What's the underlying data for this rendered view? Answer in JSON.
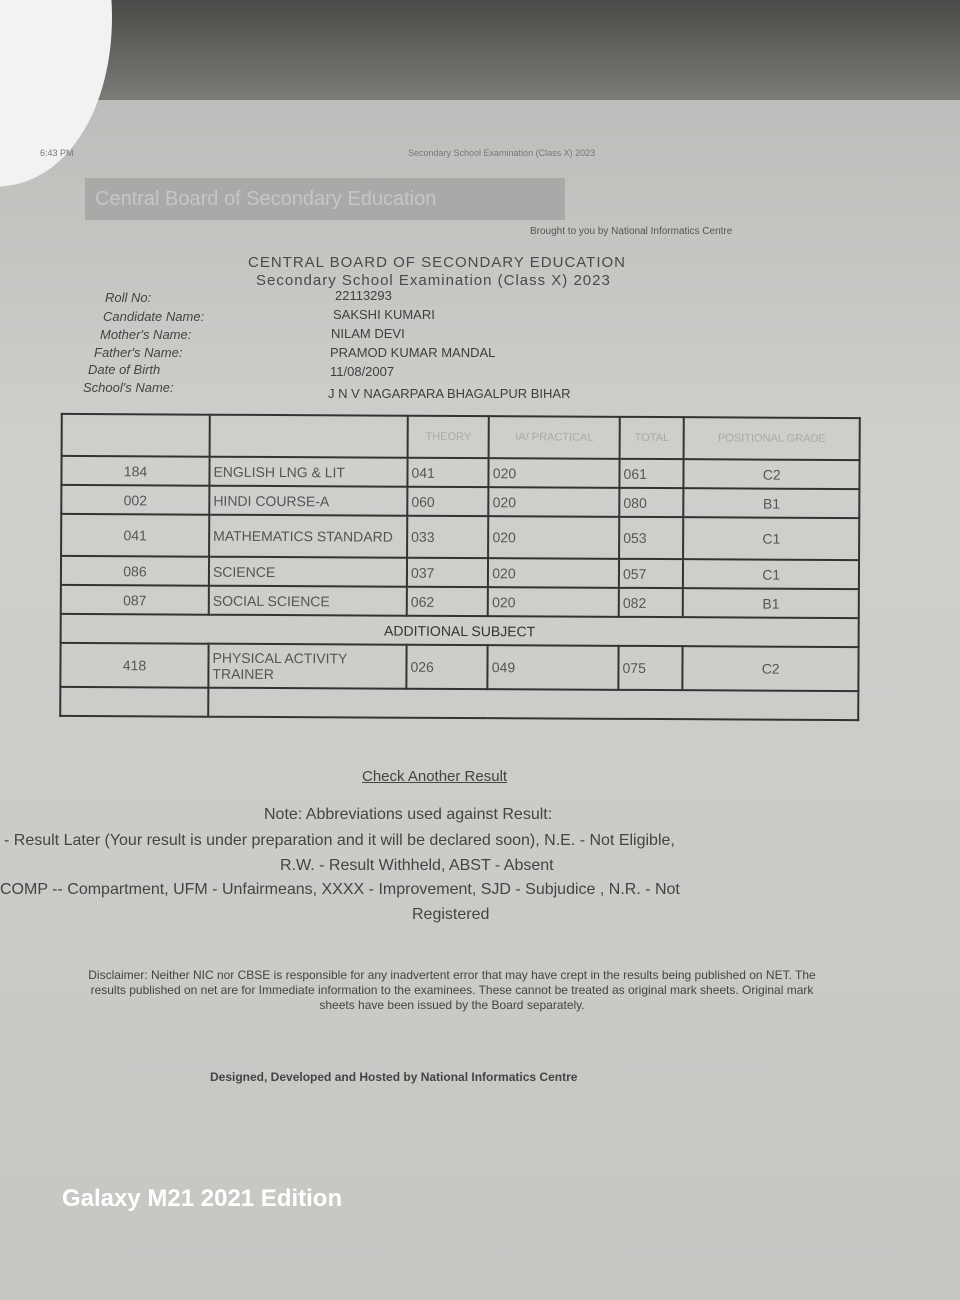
{
  "header": {
    "time": "6:43 PM",
    "page_title": "Secondary School Examination (Class X) 2023",
    "banner": "Central Board of Secondary Education",
    "brought_by": "Brought to you by National Informatics Centre"
  },
  "board": {
    "title": "CENTRAL BOARD OF SECONDARY EDUCATION",
    "subtitle": "Secondary School Examination (Class X) 2023"
  },
  "candidate": [
    {
      "label": "Roll No:",
      "value": "22113293"
    },
    {
      "label": "Candidate Name:",
      "value": "SAKSHI KUMARI"
    },
    {
      "label": "Mother's Name:",
      "value": "NILAM DEVI"
    },
    {
      "label": "Father's Name:",
      "value": "PRAMOD KUMAR MANDAL"
    },
    {
      "label": "Date of Birth",
      "value": "11/08/2007"
    },
    {
      "label": "School's Name:",
      "value": "J N V NAGARPARA BHAGALPUR BIHAR"
    }
  ],
  "table": {
    "headers": [
      "",
      "",
      "THEORY",
      "IA/ PRACTICAL",
      "TOTAL",
      "POSITIONAL GRADE"
    ],
    "rows": [
      [
        "184",
        "ENGLISH LNG & LIT",
        "041",
        "020",
        "061",
        "C2"
      ],
      [
        "002",
        "HINDI COURSE-A",
        "060",
        "020",
        "080",
        "B1"
      ],
      [
        "041",
        "MATHEMATICS STANDARD",
        "033",
        "020",
        "053",
        "C1"
      ],
      [
        "086",
        "SCIENCE",
        "037",
        "020",
        "057",
        "C1"
      ],
      [
        "087",
        "SOCIAL SCIENCE",
        "062",
        "020",
        "082",
        "B1"
      ]
    ],
    "additional_label": "ADDITIONAL SUBJECT",
    "additional_rows": [
      [
        "418",
        "PHYSICAL ACTIVITY TRAINER",
        "026",
        "049",
        "075",
        "C2"
      ]
    ]
  },
  "check_another": "Check Another Result",
  "note": {
    "title": "Note: Abbreviations used against Result:",
    "line1": "- Result Later (Your result is under preparation and it will be declared soon), N.E. - Not Eligible,",
    "line2": "R.W. - Result Withheld, ABST - Absent",
    "line3": "COMP -- Compartment, UFM - Unfairmeans, XXXX - Improvement, SJD - Subjudice , N.R. - Not",
    "line4": "Registered"
  },
  "disclaimer": "Disclaimer: Neither NIC nor CBSE is responsible for any inadvertent error that may have crept in the results being published on NET. The results published on net are for Immediate information to the examinees. These cannot be treated as original mark sheets. Original mark sheets have been issued by the Board separately.",
  "footer": "Designed, Developed and Hosted by National Informatics Centre",
  "camera_watermark": "Galaxy M21 2021 Edition"
}
